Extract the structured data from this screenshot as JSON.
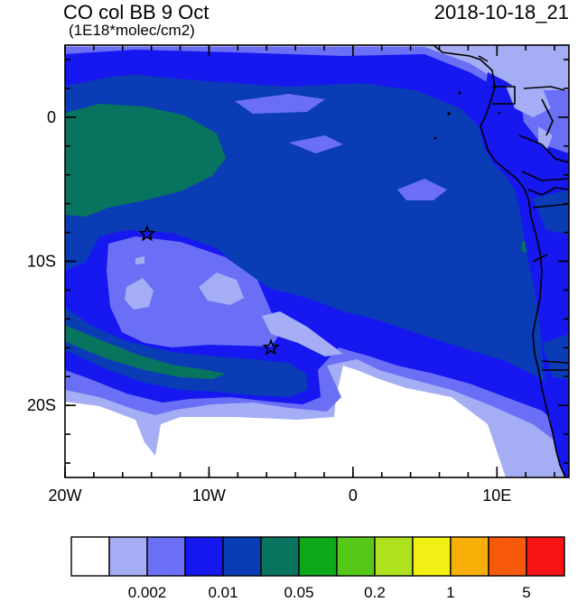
{
  "header": {
    "title": "CO col BB 9 Oct",
    "units": "(1E18*molec/cm2)",
    "timestamp": "2018-10-18_21"
  },
  "axes": {
    "x_ticks": [
      {
        "label": "20W",
        "lon": -20
      },
      {
        "label": "10W",
        "lon": -10
      },
      {
        "label": "0",
        "lon": 0
      },
      {
        "label": "10E",
        "lon": 10
      }
    ],
    "y_ticks": [
      {
        "label": "0",
        "lat": 0
      },
      {
        "label": "10S",
        "lat": -10
      },
      {
        "label": "20S",
        "lat": -20
      }
    ],
    "lon_range": [
      -20,
      15
    ],
    "lat_range": [
      -25,
      5
    ]
  },
  "colorbar": {
    "colors": [
      "#ffffff",
      "#a5aef5",
      "#6a6ff5",
      "#1717f0",
      "#0a3cb6",
      "#08735e",
      "#0caa18",
      "#55c81a",
      "#aee21f",
      "#f0f014",
      "#f8b008",
      "#f85a0c",
      "#f81414"
    ],
    "labels": [
      {
        "text": "0.002",
        "after_box": 2
      },
      {
        "text": "0.01",
        "after_box": 4
      },
      {
        "text": "0.05",
        "after_box": 6
      },
      {
        "text": "0.2",
        "after_box": 8
      },
      {
        "text": "1",
        "after_box": 10
      },
      {
        "text": "5",
        "after_box": 12
      }
    ]
  },
  "markers": [
    {
      "name": "star-marker-north",
      "lon": -14.3,
      "lat": -8.1
    },
    {
      "name": "star-marker-south",
      "lon": -5.7,
      "lat": -16.0
    }
  ]
}
